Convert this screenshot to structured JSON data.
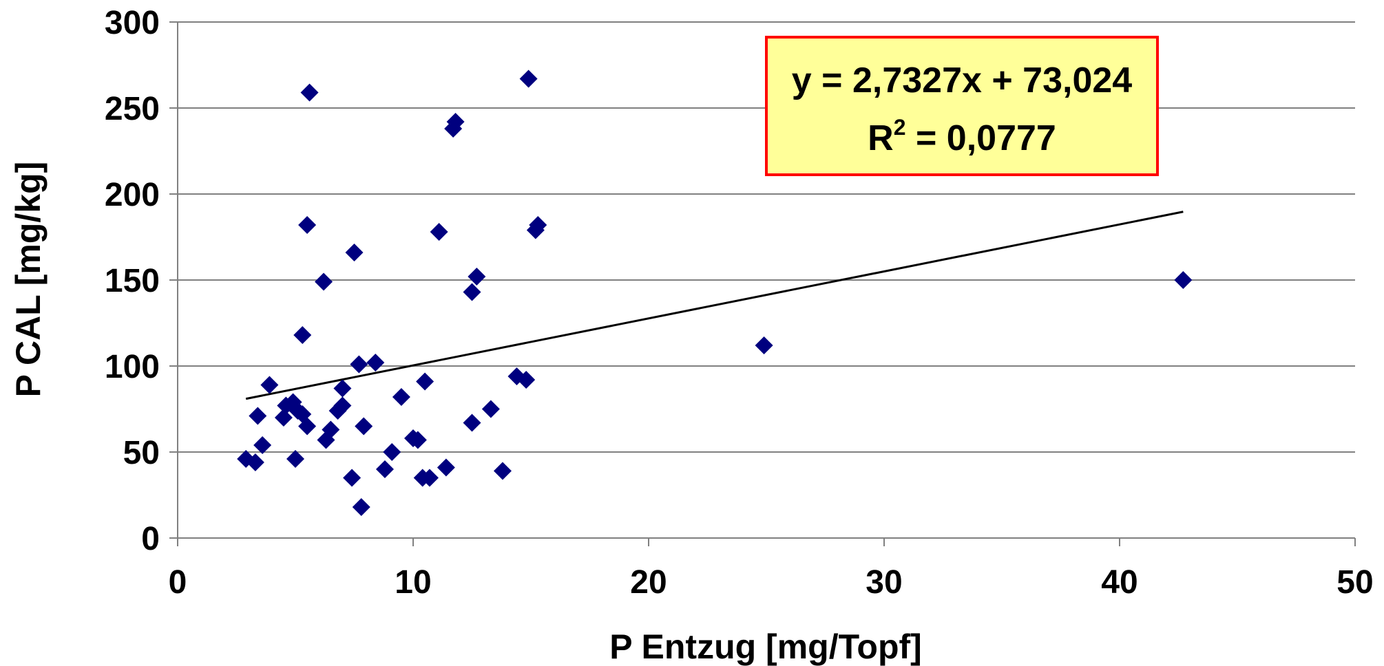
{
  "chart_data": {
    "type": "scatter",
    "xlabel": "P Entzug [mg/Topf]",
    "ylabel": "P CAL [mg/kg]",
    "xlim": [
      0,
      50
    ],
    "ylim": [
      0,
      300
    ],
    "x_ticks": [
      "0",
      "10",
      "20",
      "30",
      "40",
      "50"
    ],
    "y_ticks": [
      "0",
      "50",
      "100",
      "150",
      "200",
      "250",
      "300"
    ],
    "x_tick_values": [
      0,
      10,
      20,
      30,
      40,
      50
    ],
    "y_tick_values": [
      0,
      50,
      100,
      150,
      200,
      250,
      300
    ],
    "grid": "horizontal",
    "marker": "diamond",
    "colors": {
      "points": "#00007F",
      "trendline": "#000000",
      "grid": "#808080",
      "equation_box_fill": "#FFFF99",
      "equation_box_border": "#FF0000"
    },
    "points": [
      {
        "x": 2.9,
        "y": 46
      },
      {
        "x": 3.3,
        "y": 44
      },
      {
        "x": 3.4,
        "y": 71
      },
      {
        "x": 3.6,
        "y": 54
      },
      {
        "x": 3.9,
        "y": 89
      },
      {
        "x": 4.5,
        "y": 70
      },
      {
        "x": 4.6,
        "y": 77
      },
      {
        "x": 4.9,
        "y": 79
      },
      {
        "x": 5.0,
        "y": 46
      },
      {
        "x": 5.1,
        "y": 74
      },
      {
        "x": 5.3,
        "y": 72
      },
      {
        "x": 5.3,
        "y": 118
      },
      {
        "x": 5.5,
        "y": 65
      },
      {
        "x": 5.5,
        "y": 182
      },
      {
        "x": 5.6,
        "y": 259
      },
      {
        "x": 6.2,
        "y": 149
      },
      {
        "x": 6.3,
        "y": 57
      },
      {
        "x": 6.5,
        "y": 63
      },
      {
        "x": 6.8,
        "y": 74
      },
      {
        "x": 7.0,
        "y": 77
      },
      {
        "x": 7.0,
        "y": 87
      },
      {
        "x": 7.4,
        "y": 35
      },
      {
        "x": 7.5,
        "y": 166
      },
      {
        "x": 7.7,
        "y": 101
      },
      {
        "x": 7.8,
        "y": 18
      },
      {
        "x": 7.9,
        "y": 65
      },
      {
        "x": 8.4,
        "y": 102
      },
      {
        "x": 8.8,
        "y": 40
      },
      {
        "x": 9.1,
        "y": 50
      },
      {
        "x": 9.5,
        "y": 82
      },
      {
        "x": 10.0,
        "y": 58
      },
      {
        "x": 10.2,
        "y": 57
      },
      {
        "x": 10.4,
        "y": 35
      },
      {
        "x": 10.5,
        "y": 91
      },
      {
        "x": 10.7,
        "y": 35
      },
      {
        "x": 11.1,
        "y": 178
      },
      {
        "x": 11.4,
        "y": 41
      },
      {
        "x": 11.7,
        "y": 238
      },
      {
        "x": 11.8,
        "y": 242
      },
      {
        "x": 12.5,
        "y": 67
      },
      {
        "x": 12.5,
        "y": 143
      },
      {
        "x": 12.7,
        "y": 152
      },
      {
        "x": 13.3,
        "y": 75
      },
      {
        "x": 13.8,
        "y": 39
      },
      {
        "x": 14.4,
        "y": 94
      },
      {
        "x": 14.8,
        "y": 92
      },
      {
        "x": 14.9,
        "y": 267
      },
      {
        "x": 15.2,
        "y": 179
      },
      {
        "x": 15.3,
        "y": 182
      },
      {
        "x": 24.9,
        "y": 112
      },
      {
        "x": 42.7,
        "y": 150
      }
    ],
    "trendline": {
      "slope": 2.7327,
      "intercept": 73.024,
      "x_range": [
        2.9,
        42.7
      ]
    },
    "annotation": {
      "equation_text": "y = 2,7327x + 73,024",
      "r2_prefix": "R",
      "r2_superscript": "2",
      "r2_value": " = 0,0777"
    }
  }
}
